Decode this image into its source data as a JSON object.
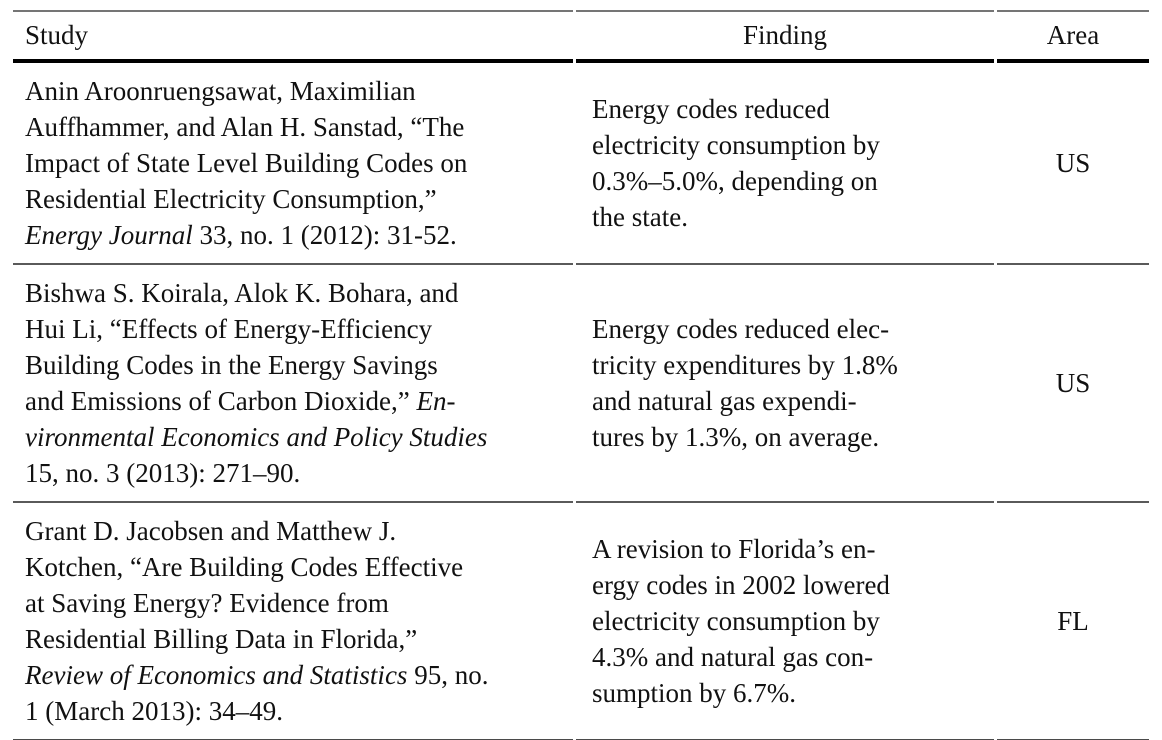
{
  "table": {
    "headers": {
      "study": "Study",
      "finding": "Finding",
      "area": "Area"
    },
    "rules": {
      "top_rule_color": "#757575",
      "header_rule_color": "#000000",
      "row_rule_color": "#5a5a5a",
      "bottom_rule_color": "#4a4a4a"
    },
    "rows": [
      {
        "study_lines": [
          {
            "segments": [
              {
                "text": "Anin Aroonruengsawat, Maximilian",
                "italic": false
              }
            ]
          },
          {
            "segments": [
              {
                "text": "Auffhammer, and Alan H. Sanstad, “The",
                "italic": false
              }
            ]
          },
          {
            "segments": [
              {
                "text": "Impact of State Level Building Codes on",
                "italic": false
              }
            ]
          },
          {
            "segments": [
              {
                "text": "Residential Electricity Consumption,”",
                "italic": false
              }
            ]
          },
          {
            "segments": [
              {
                "text": "Energy Journal",
                "italic": true
              },
              {
                "text": " 33, no. 1 (2012): 31-52.",
                "italic": false
              }
            ]
          }
        ],
        "finding_lines": [
          "Energy codes reduced",
          "electricity consumption by",
          "0.3%–5.0%, depending on",
          "the state."
        ],
        "area": "US"
      },
      {
        "study_lines": [
          {
            "segments": [
              {
                "text": "Bishwa S. Koirala, Alok K. Bohara, and",
                "italic": false
              }
            ]
          },
          {
            "segments": [
              {
                "text": "Hui Li, “Effects of Energy-Efficiency",
                "italic": false
              }
            ]
          },
          {
            "segments": [
              {
                "text": "Building Codes in the Energy Savings",
                "italic": false
              }
            ]
          },
          {
            "segments": [
              {
                "text": "and Emissions of Carbon Dioxide,” ",
                "italic": false
              },
              {
                "text": "En-",
                "italic": true
              }
            ]
          },
          {
            "segments": [
              {
                "text": "vironmental Economics and Policy Studies",
                "italic": true
              }
            ]
          },
          {
            "segments": [
              {
                "text": "15, no. 3 (2013): 271–90.",
                "italic": false
              }
            ]
          }
        ],
        "finding_lines": [
          "Energy codes reduced elec-",
          "tricity expenditures by 1.8%",
          "and natural gas expendi-",
          "tures by 1.3%, on average."
        ],
        "area": "US"
      },
      {
        "study_lines": [
          {
            "segments": [
              {
                "text": "Grant D. Jacobsen and Matthew J.",
                "italic": false
              }
            ]
          },
          {
            "segments": [
              {
                "text": "Kotchen, “Are Building Codes Effective",
                "italic": false
              }
            ]
          },
          {
            "segments": [
              {
                "text": "at Saving Energy? Evidence from",
                "italic": false
              }
            ]
          },
          {
            "segments": [
              {
                "text": "Residential Billing Data in Florida,”",
                "italic": false
              }
            ]
          },
          {
            "segments": [
              {
                "text": "Review of Economics and Statistics",
                "italic": true
              },
              {
                "text": " 95, no.",
                "italic": false
              }
            ]
          },
          {
            "segments": [
              {
                "text": "1 (March 2013): 34–49.",
                "italic": false
              }
            ]
          }
        ],
        "finding_lines": [
          "A revision to Florida’s en-",
          "ergy codes in 2002 lowered",
          "electricity consumption by",
          "4.3% and natural gas con-",
          "sumption by 6.7%."
        ],
        "area": "FL"
      }
    ]
  }
}
